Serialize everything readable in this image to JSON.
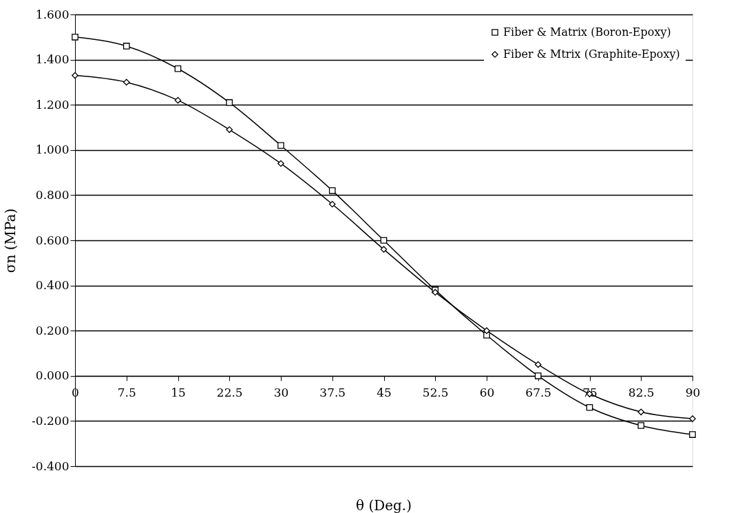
{
  "chart_data": {
    "type": "line",
    "xlabel": "θ (Deg.)",
    "ylabel": "σn (MPa)",
    "x": [
      0,
      7.5,
      15,
      22.5,
      30,
      37.5,
      45,
      52.5,
      60,
      67.5,
      75,
      82.5,
      90
    ],
    "series": [
      {
        "name": "Fiber & Matrix (Boron-Epoxy)",
        "color": "#000000",
        "marker": "square",
        "values": [
          1.5,
          1.46,
          1.36,
          1.21,
          1.02,
          0.82,
          0.6,
          0.38,
          0.18,
          0.0,
          -0.14,
          -0.22,
          -0.26
        ]
      },
      {
        "name": "Fiber & Mtrix (Graphite-Epoxy)",
        "color": "#000000",
        "marker": "diamond",
        "values": [
          1.33,
          1.3,
          1.22,
          1.09,
          0.94,
          0.76,
          0.56,
          0.37,
          0.2,
          0.05,
          -0.08,
          -0.16,
          -0.19
        ]
      }
    ],
    "xlim": [
      0,
      90
    ],
    "xticks": [
      0,
      7.5,
      15,
      22.5,
      30,
      37.5,
      45,
      52.5,
      60,
      67.5,
      75,
      82.5,
      90
    ],
    "ylim": [
      -0.4,
      1.6
    ],
    "yticks": [
      {
        "value": -0.4,
        "label": "-0.400"
      },
      {
        "value": -0.2,
        "label": "-0.200"
      },
      {
        "value": 0,
        "label": "0.000"
      },
      {
        "value": 0.2,
        "label": "0.200"
      },
      {
        "value": 0.4,
        "label": "0.400"
      },
      {
        "value": 0.6,
        "label": "0.600"
      },
      {
        "value": 0.8,
        "label": "0.800"
      },
      {
        "value": 1.0,
        "label": "1.000"
      },
      {
        "value": 1.2,
        "label": "1.200"
      },
      {
        "value": 1.4,
        "label": "1.400"
      },
      {
        "value": 1.6,
        "label": "1.600"
      }
    ],
    "grid": "y",
    "legend": "top right",
    "line_style": "solid"
  }
}
